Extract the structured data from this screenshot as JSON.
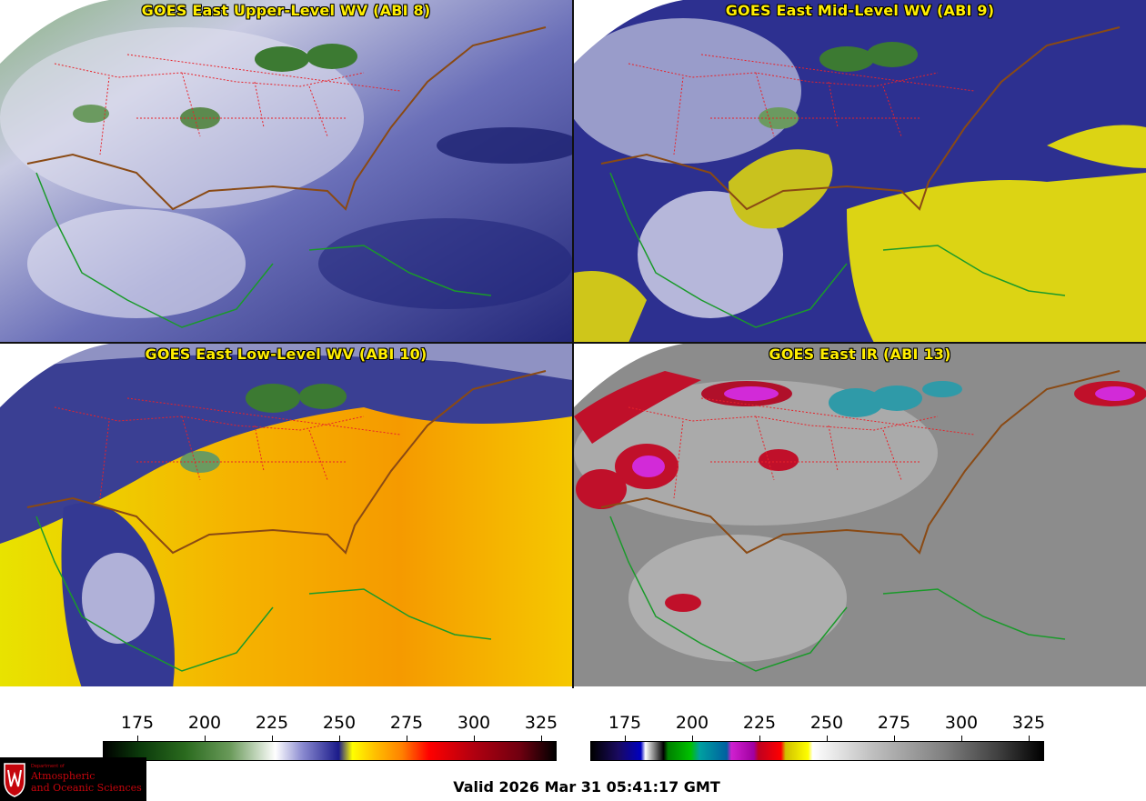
{
  "panels": [
    {
      "title": "GOES East Upper-Level WV (ABI 8)",
      "product": "upper-level-wv"
    },
    {
      "title": "GOES East Mid-Level WV (ABI 9)",
      "product": "mid-level-wv"
    },
    {
      "title": "GOES East Low-Level WV (ABI 10)",
      "product": "low-level-wv"
    },
    {
      "title": "GOES East IR (ABI 13)",
      "product": "ir"
    }
  ],
  "colorbars": {
    "wv": {
      "ticks": [
        "175",
        "200",
        "225",
        "250",
        "275",
        "300",
        "325"
      ]
    },
    "ir": {
      "ticks": [
        "175",
        "200",
        "225",
        "250",
        "275",
        "300",
        "325"
      ]
    }
  },
  "valid_time": "Valid 2026 Mar 31 05:41:17 GMT",
  "logo": {
    "dept": "Department of",
    "line1": "Atmospheric",
    "line2": "and Oceanic Sciences",
    "icon": "uw-crest-icon"
  },
  "colors": {
    "title": "#ffee00",
    "state_borders": "#e8222a",
    "coastline_us": "#8a4a14",
    "coastline_mexico": "#1a9a2a"
  }
}
